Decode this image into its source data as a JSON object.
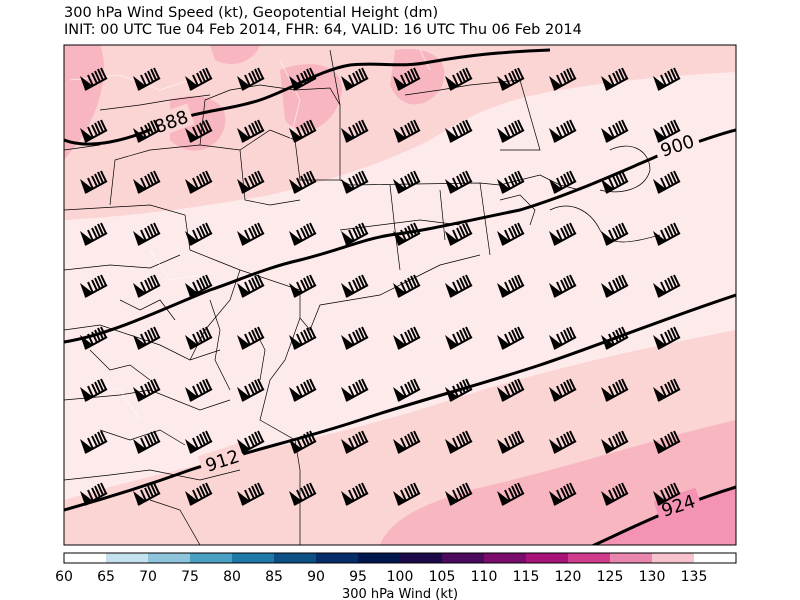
{
  "header": {
    "title": "300 hPa Wind Speed (kt), Geopotential Height (dm)",
    "subtitle": "INIT: 00 UTC Tue 04 Feb 2014, FHR: 64, VALID: 16 UTC Thu 06 Feb 2014"
  },
  "map": {
    "contours": [
      {
        "value": "888",
        "color": "#000000"
      },
      {
        "value": "900",
        "color": "#000000"
      },
      {
        "value": "912",
        "color": "#000000"
      },
      {
        "value": "924",
        "color": "#000000"
      }
    ],
    "wind_barb_icon": "wind-barb-icon",
    "fill_colors": {
      "lightest": "#fdeaea",
      "light": "#fbd4d4",
      "medium": "#f8b7c0",
      "strong": "#f593b4",
      "strongest": "#f27fab"
    },
    "boundary_color": "#000000",
    "county_color": "#000000"
  },
  "colorbar": {
    "label": "300 hPa Wind (kt)",
    "ticks": [
      "60",
      "65",
      "70",
      "75",
      "80",
      "85",
      "90",
      "95",
      "100",
      "105",
      "110",
      "115",
      "120",
      "125",
      "130",
      "135"
    ],
    "colors": [
      "#ffffff",
      "#c6e1ee",
      "#8ec4dc",
      "#4a9fc4",
      "#1f79a8",
      "#0c4f85",
      "#062c6a",
      "#03174f",
      "#1a0a48",
      "#4a0a5e",
      "#7a0c6c",
      "#a81377",
      "#d13c8c",
      "#e986ae",
      "#f6c3cc",
      "#ffffff"
    ]
  }
}
